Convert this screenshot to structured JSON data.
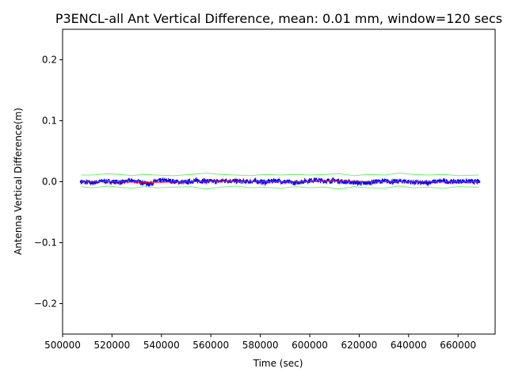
{
  "chart_data": {
    "type": "line",
    "title": "P3ENCL-all Ant Vertical Difference, mean: 0.01 mm, window=120 secs",
    "xlabel": "Time (sec)",
    "ylabel": "Antenna Vertical Difference(m)",
    "xlim": [
      500000,
      675000
    ],
    "ylim": [
      -0.25,
      0.25
    ],
    "x_ticks": [
      500000,
      520000,
      540000,
      560000,
      580000,
      600000,
      620000,
      640000,
      660000
    ],
    "x_tick_labels": [
      "500000",
      "520000",
      "540000",
      "560000",
      "580000",
      "600000",
      "620000",
      "640000",
      "660000"
    ],
    "y_ticks": [
      -0.2,
      -0.1,
      0.0,
      0.1,
      0.2
    ],
    "y_tick_labels": [
      "−0.2",
      "−0.1",
      "0.0",
      "0.1",
      "0.2"
    ],
    "grid": false,
    "legend": "none",
    "x_range": [
      507500,
      668500
    ],
    "series": [
      {
        "role": "raw-data",
        "color": "#0000ff",
        "marker": "dot",
        "x": [
          507500,
          512000,
          516000,
          520000,
          524000,
          528000,
          532000,
          535000,
          538000,
          542000,
          546000,
          550000,
          554000,
          558000,
          562000,
          566000,
          570000,
          574000,
          578000,
          582000,
          586000,
          590000,
          594000,
          598000,
          602000,
          606000,
          610000,
          614000,
          618000,
          622000,
          626000,
          630000,
          634000,
          638000,
          642000,
          646000,
          650000,
          654000,
          658000,
          662000,
          666000,
          668500
        ],
        "y": [
          0.0,
          -0.002,
          0.001,
          0.0,
          -0.001,
          0.002,
          -0.001,
          -0.004,
          0.001,
          0.002,
          0.0,
          -0.001,
          0.002,
          0.001,
          0.0,
          0.002,
          0.001,
          0.0,
          0.001,
          -0.001,
          0.002,
          0.0,
          -0.002,
          0.001,
          0.003,
          0.001,
          0.002,
          0.0,
          -0.001,
          -0.003,
          0.0,
          0.001,
          0.0,
          0.001,
          -0.001,
          -0.002,
          0.0,
          0.001,
          0.0,
          0.001,
          0.0,
          0.0
        ],
        "spread": 0.004
      },
      {
        "role": "running-mean",
        "color": "#ff0000",
        "x": [
          507500,
          520000,
          535000,
          550000,
          565000,
          580000,
          595000,
          610000,
          625000,
          640000,
          655000,
          668500
        ],
        "y": [
          0.0,
          0.0,
          -0.001,
          0.0,
          0.001,
          0.0,
          0.0,
          0.001,
          0.0,
          0.0,
          0.0,
          0.0
        ]
      },
      {
        "role": "upper-envelope",
        "color": "#66ee66",
        "x": [
          507500,
          512000,
          518000,
          523000,
          528000,
          533000,
          538000,
          545000,
          552000,
          558000,
          564000,
          570000,
          576000,
          582000,
          588000,
          594000,
          600000,
          606000,
          612000,
          618000,
          624000,
          630000,
          636000,
          642000,
          648000,
          654000,
          660000,
          668500
        ],
        "y": [
          0.011,
          0.011,
          0.013,
          0.012,
          0.01,
          0.012,
          0.011,
          0.01,
          0.012,
          0.014,
          0.012,
          0.011,
          0.01,
          0.012,
          0.011,
          0.012,
          0.011,
          0.012,
          0.013,
          0.01,
          0.012,
          0.011,
          0.014,
          0.012,
          0.011,
          0.012,
          0.01,
          0.011
        ]
      },
      {
        "role": "lower-envelope",
        "color": "#66ee66",
        "x": [
          507500,
          512000,
          518000,
          523000,
          528000,
          533000,
          538000,
          545000,
          552000,
          558000,
          564000,
          570000,
          576000,
          582000,
          588000,
          594000,
          600000,
          606000,
          612000,
          618000,
          624000,
          630000,
          636000,
          642000,
          648000,
          654000,
          660000,
          668500
        ],
        "y": [
          -0.008,
          -0.01,
          -0.007,
          -0.009,
          -0.011,
          -0.008,
          -0.01,
          -0.009,
          -0.008,
          -0.012,
          -0.009,
          -0.007,
          -0.01,
          -0.009,
          -0.011,
          -0.008,
          -0.01,
          -0.009,
          -0.012,
          -0.008,
          -0.01,
          -0.011,
          -0.007,
          -0.01,
          -0.009,
          -0.011,
          -0.008,
          -0.009
        ]
      }
    ]
  }
}
